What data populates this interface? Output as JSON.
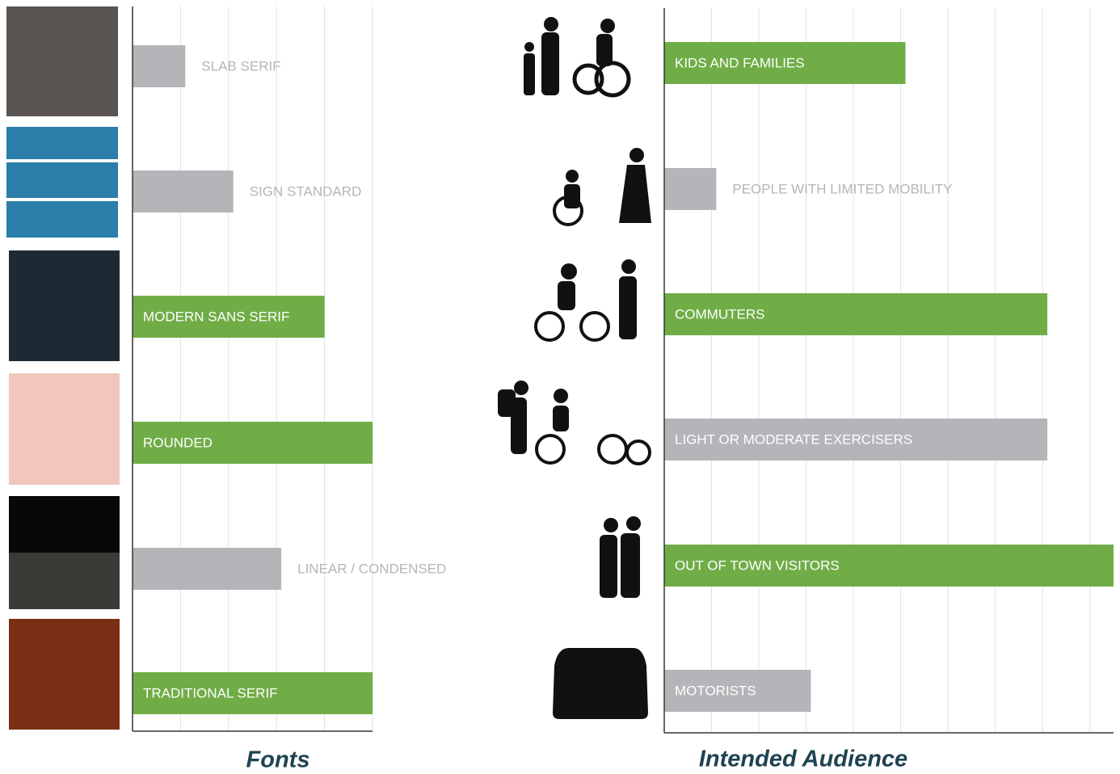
{
  "chart_data": [
    {
      "type": "bar",
      "orientation": "horizontal",
      "title": "Fonts",
      "categories": [
        "SLAB SERIF",
        "SIGN STANDARD",
        "MODERN SANS SERIF",
        "ROUNDED",
        "LINEAR / CONDENSED",
        "TRADITIONAL SERIF"
      ],
      "values": [
        1.1,
        2.1,
        4.0,
        5.0,
        3.1,
        5.0
      ],
      "colors": [
        "#b4b5b8",
        "#b4b5b8",
        "#70ad47",
        "#70ad47",
        "#b4b5b8",
        "#70ad47"
      ],
      "xlim": [
        0,
        5
      ],
      "xticks": [
        1,
        2,
        3,
        4,
        5
      ],
      "grid": true
    },
    {
      "type": "bar",
      "orientation": "horizontal",
      "title": "Intended Audience",
      "categories": [
        "KIDS AND FAMILIES",
        "PEOPLE WITH LIMITED MOBILITY",
        "COMMUTERS",
        "LIGHT OR MODERATE EXERCISERS",
        "OUT OF TOWN VISITORS",
        "MOTORISTS"
      ],
      "values": [
        5.1,
        1.1,
        8.1,
        8.1,
        9.5,
        3.1
      ],
      "colors": [
        "#70ad47",
        "#b4b5b8",
        "#70ad47",
        "#b4b5b8",
        "#70ad47",
        "#b4b5b8"
      ],
      "xlim": [
        0,
        9.5
      ],
      "xticks": [
        1,
        2,
        3,
        4,
        5,
        6,
        7,
        8,
        9
      ],
      "grid": true
    }
  ]
}
